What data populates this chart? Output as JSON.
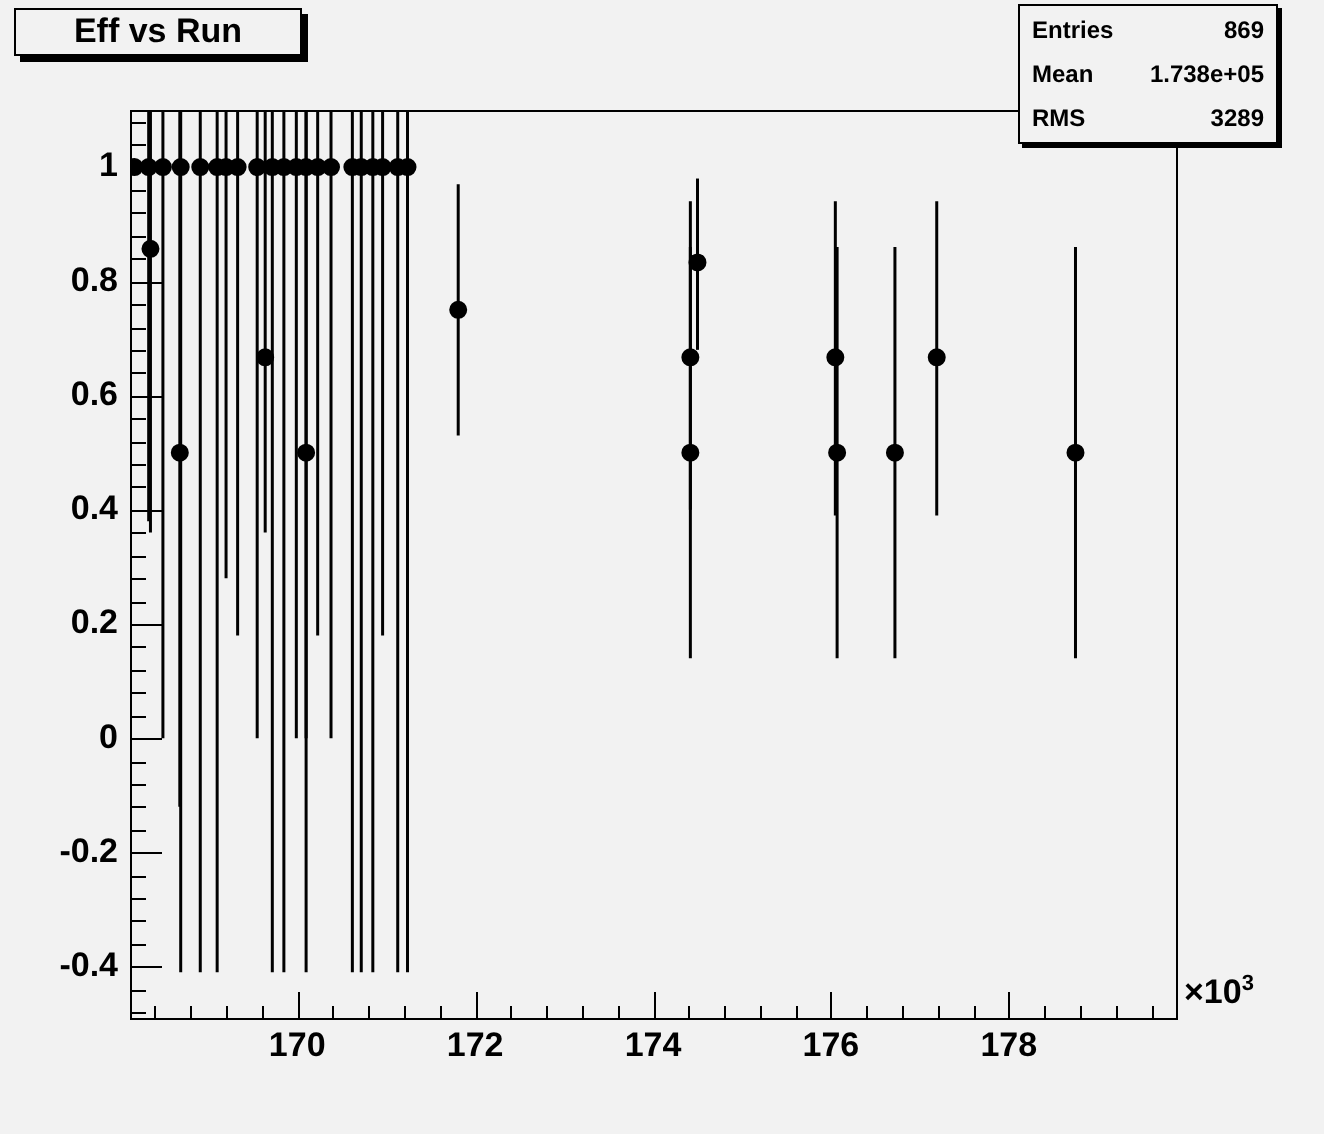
{
  "chart_data": {
    "type": "scatter",
    "title": "Eff vs Run",
    "x": [
      168.17,
      168.33,
      168.35,
      168.49,
      168.69,
      168.68,
      168.91,
      169.1,
      169.2,
      169.33,
      169.55,
      169.64,
      169.72,
      169.85,
      169.99,
      170.1,
      170.1,
      170.23,
      170.38,
      170.62,
      170.72,
      170.85,
      170.96,
      171.13,
      171.24,
      171.81,
      174.42,
      174.42,
      174.5,
      176.05,
      176.07,
      176.72,
      177.19,
      178.75
    ],
    "values": [
      1,
      1,
      0.857,
      1,
      1,
      0.5,
      1,
      1,
      1,
      1,
      1,
      0.667,
      1,
      1,
      1,
      1,
      0.5,
      1,
      1,
      1,
      1,
      1,
      1,
      1,
      1,
      0.75,
      0.667,
      0.5,
      0.833,
      0.667,
      0.5,
      0.5,
      0.667,
      0.5
    ],
    "errors": [
      null,
      [
        0.38,
        1.1
      ],
      [
        0.36,
        1.1
      ],
      [
        0,
        1.1
      ],
      [
        -0.41,
        1.1
      ],
      [
        -0.12,
        1.1
      ],
      [
        -0.41,
        1.1
      ],
      [
        -0.41,
        1.1
      ],
      [
        0.28,
        1.1
      ],
      [
        0.18,
        1.1
      ],
      [
        0,
        1.1
      ],
      [
        0.36,
        1.1
      ],
      [
        -0.41,
        1.1
      ],
      [
        -0.41,
        1.1
      ],
      [
        0,
        1.1
      ],
      [
        -0.41,
        1.1
      ],
      [
        0,
        1.1
      ],
      [
        0.18,
        1.1
      ],
      [
        0,
        1.1
      ],
      [
        -0.41,
        1.1
      ],
      [
        -0.41,
        1.1
      ],
      [
        -0.41,
        1.1
      ],
      [
        0.18,
        1.1
      ],
      [
        -0.41,
        1.1
      ],
      [
        -0.41,
        1.1
      ],
      [
        0.53,
        0.97
      ],
      [
        0.4,
        0.94
      ],
      [
        0.14,
        0.86
      ],
      [
        0.68,
        0.98
      ],
      [
        0.39,
        0.94
      ],
      [
        0.14,
        0.86
      ],
      [
        0.14,
        0.86
      ],
      [
        0.39,
        0.94
      ],
      [
        0.14,
        0.86
      ]
    ],
    "color": "#000000",
    "marker": "circle",
    "grid": false,
    "legend": false,
    "xlim": [
      168.12,
      179.88
    ],
    "ylim": [
      -0.49,
      1.1
    ],
    "xticks": [
      170,
      172,
      174,
      176,
      178
    ],
    "yticks": [
      -0.4,
      -0.2,
      0,
      0.2,
      0.4,
      0.6,
      0.8,
      1
    ],
    "annotations": [
      "Entries",
      "869",
      "Mean",
      "1.738e+05",
      "RMS",
      "3289",
      "×10$^{3}$"
    ]
  }
}
